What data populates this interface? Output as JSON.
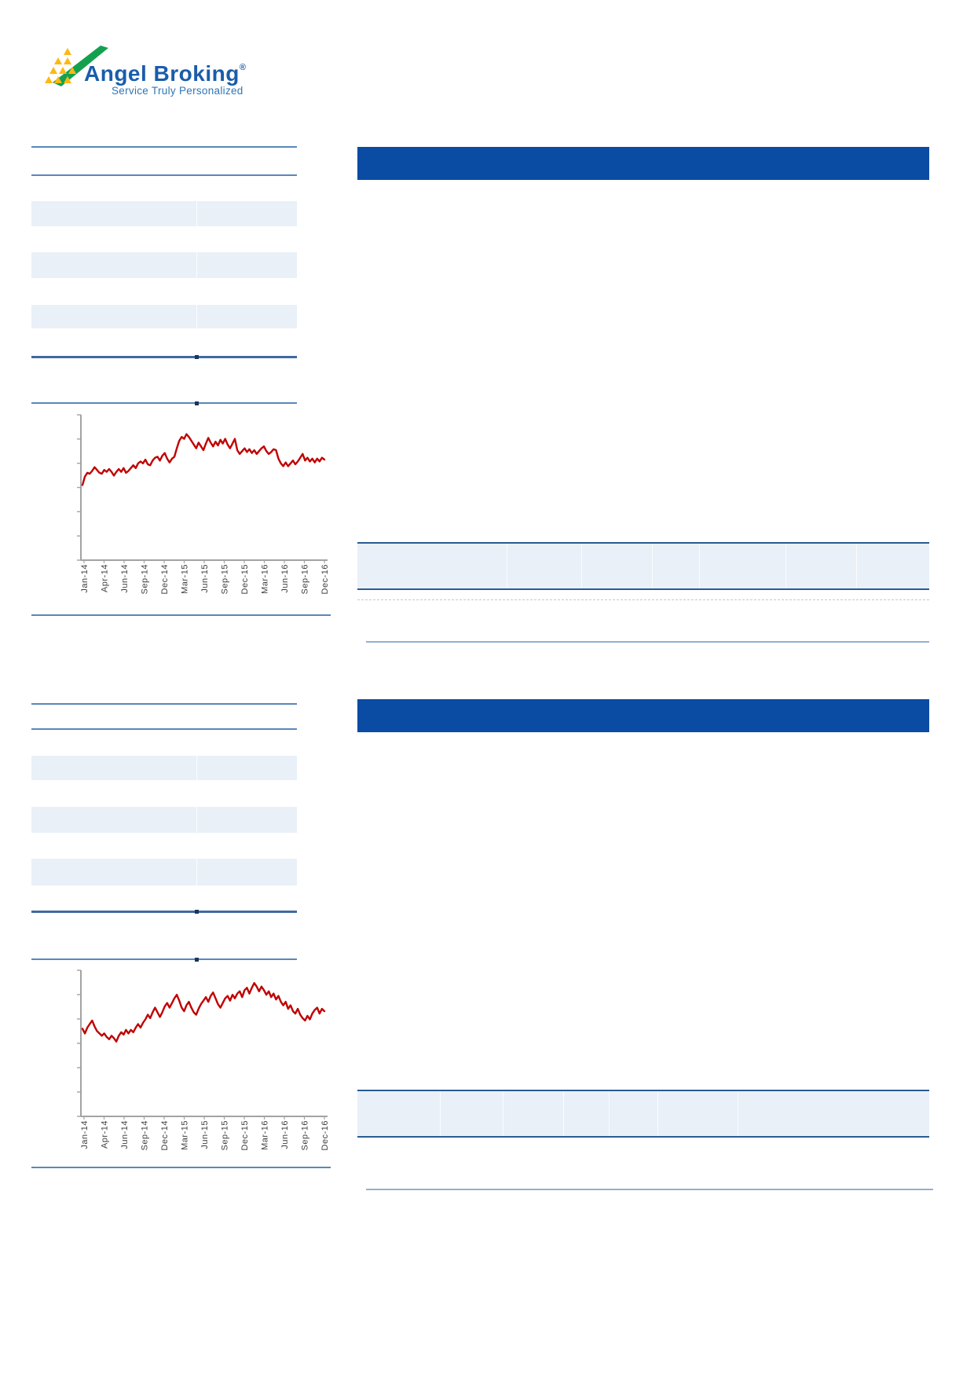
{
  "logo": {
    "brand": "Angel Broking",
    "registered": "®",
    "tagline": "Service Truly Personalized",
    "brand_color": "#1a5dab",
    "tagline_color": "#2f76b5",
    "triangle_green": "#13a14e",
    "triangle_yellow": "#fdb913"
  },
  "colors": {
    "header_bar_blue": "#0a4ba4",
    "divider_blue": "#5a87ba",
    "section_line_dark": "#3f6a9e",
    "table_band_fill": "#e9f0f8",
    "right_table_border": "#2a5c92",
    "hairline_blue": "#93afd2",
    "chart_line_red": "#c00000",
    "axis_gray": "#a3a3a3",
    "axis_label_gray": "#404040"
  },
  "chart_data": [
    {
      "type": "line",
      "title": "",
      "x_labels": [
        "Jan-14",
        "Apr-14",
        "Jun-14",
        "Sep-14",
        "Dec-14",
        "Mar-15",
        "Jun-15",
        "Sep-15",
        "Dec-15",
        "Mar-16",
        "Jun-16",
        "Sep-16",
        "Dec-16"
      ],
      "y_axis_tick_count": 7,
      "y_axis_labels_visible": false,
      "legend": "none",
      "line_color": "#c00000",
      "points": [
        [
          0,
          28
        ],
        [
          1,
          37
        ],
        [
          2,
          41
        ],
        [
          3,
          40
        ],
        [
          4,
          43
        ],
        [
          5,
          47
        ],
        [
          6,
          44
        ],
        [
          7,
          41
        ],
        [
          8,
          40
        ],
        [
          9,
          44
        ],
        [
          10,
          42
        ],
        [
          11,
          45
        ],
        [
          12,
          42
        ],
        [
          13,
          38
        ],
        [
          14,
          42
        ],
        [
          15,
          45
        ],
        [
          16,
          42
        ],
        [
          17,
          46
        ],
        [
          18,
          41
        ],
        [
          19,
          43
        ],
        [
          20,
          46
        ],
        [
          21,
          49
        ],
        [
          22,
          46
        ],
        [
          23,
          51
        ],
        [
          24,
          53
        ],
        [
          25,
          51
        ],
        [
          26,
          55
        ],
        [
          27,
          50
        ],
        [
          28,
          49
        ],
        [
          29,
          54
        ],
        [
          30,
          57
        ],
        [
          31,
          58
        ],
        [
          32,
          54
        ],
        [
          33,
          59
        ],
        [
          34,
          62
        ],
        [
          35,
          56
        ],
        [
          36,
          52
        ],
        [
          37,
          56
        ],
        [
          38,
          58
        ],
        [
          39,
          67
        ],
        [
          40,
          75
        ],
        [
          41,
          79
        ],
        [
          42,
          77
        ],
        [
          43,
          82
        ],
        [
          44,
          79
        ],
        [
          45,
          75
        ],
        [
          46,
          71
        ],
        [
          47,
          67
        ],
        [
          48,
          73
        ],
        [
          49,
          69
        ],
        [
          50,
          65
        ],
        [
          51,
          72
        ],
        [
          52,
          78
        ],
        [
          53,
          73
        ],
        [
          54,
          69
        ],
        [
          55,
          74
        ],
        [
          56,
          70
        ],
        [
          57,
          76
        ],
        [
          58,
          72
        ],
        [
          59,
          77
        ],
        [
          60,
          71
        ],
        [
          61,
          67
        ],
        [
          62,
          72
        ],
        [
          63,
          77
        ],
        [
          64,
          65
        ],
        [
          65,
          61
        ],
        [
          66,
          64
        ],
        [
          67,
          67
        ],
        [
          68,
          63
        ],
        [
          69,
          66
        ],
        [
          70,
          62
        ],
        [
          71,
          65
        ],
        [
          72,
          61
        ],
        [
          73,
          64
        ],
        [
          74,
          67
        ],
        [
          75,
          69
        ],
        [
          76,
          64
        ],
        [
          77,
          61
        ],
        [
          78,
          63
        ],
        [
          79,
          66
        ],
        [
          80,
          65
        ],
        [
          81,
          56
        ],
        [
          82,
          51
        ],
        [
          83,
          48
        ],
        [
          84,
          52
        ],
        [
          85,
          48
        ],
        [
          86,
          51
        ],
        [
          87,
          54
        ],
        [
          88,
          50
        ],
        [
          89,
          53
        ],
        [
          90,
          57
        ],
        [
          91,
          61
        ],
        [
          92,
          54
        ],
        [
          93,
          57
        ],
        [
          94,
          53
        ],
        [
          95,
          56
        ],
        [
          96,
          52
        ],
        [
          97,
          56
        ],
        [
          98,
          53
        ],
        [
          99,
          57
        ],
        [
          100,
          55
        ]
      ]
    },
    {
      "type": "line",
      "title": "",
      "x_labels": [
        "Jan-14",
        "Apr-14",
        "Jun-14",
        "Sep-14",
        "Dec-14",
        "Mar-15",
        "Jun-15",
        "Sep-15",
        "Dec-15",
        "Mar-16",
        "Jun-16",
        "Sep-16",
        "Dec-16"
      ],
      "y_axis_tick_count": 7,
      "y_axis_labels_visible": false,
      "legend": "none",
      "line_color": "#c00000",
      "points": [
        [
          0,
          44
        ],
        [
          1,
          40
        ],
        [
          2,
          45
        ],
        [
          3,
          48
        ],
        [
          4,
          51
        ],
        [
          5,
          46
        ],
        [
          6,
          42
        ],
        [
          7,
          40
        ],
        [
          8,
          38
        ],
        [
          9,
          40
        ],
        [
          10,
          37
        ],
        [
          11,
          35
        ],
        [
          12,
          38
        ],
        [
          13,
          36
        ],
        [
          14,
          33
        ],
        [
          15,
          38
        ],
        [
          16,
          41
        ],
        [
          17,
          39
        ],
        [
          18,
          43
        ],
        [
          19,
          40
        ],
        [
          20,
          43
        ],
        [
          21,
          41
        ],
        [
          22,
          45
        ],
        [
          23,
          48
        ],
        [
          24,
          45
        ],
        [
          25,
          49
        ],
        [
          26,
          52
        ],
        [
          27,
          56
        ],
        [
          28,
          53
        ],
        [
          29,
          58
        ],
        [
          30,
          62
        ],
        [
          31,
          58
        ],
        [
          32,
          54
        ],
        [
          33,
          58
        ],
        [
          34,
          63
        ],
        [
          35,
          66
        ],
        [
          36,
          62
        ],
        [
          37,
          66
        ],
        [
          38,
          70
        ],
        [
          39,
          73
        ],
        [
          40,
          68
        ],
        [
          41,
          62
        ],
        [
          42,
          59
        ],
        [
          43,
          64
        ],
        [
          44,
          67
        ],
        [
          45,
          62
        ],
        [
          46,
          58
        ],
        [
          47,
          56
        ],
        [
          48,
          61
        ],
        [
          49,
          65
        ],
        [
          50,
          68
        ],
        [
          51,
          71
        ],
        [
          52,
          67
        ],
        [
          53,
          72
        ],
        [
          54,
          75
        ],
        [
          55,
          70
        ],
        [
          56,
          65
        ],
        [
          57,
          62
        ],
        [
          58,
          66
        ],
        [
          59,
          70
        ],
        [
          60,
          72
        ],
        [
          61,
          68
        ],
        [
          62,
          73
        ],
        [
          63,
          70
        ],
        [
          64,
          74
        ],
        [
          65,
          76
        ],
        [
          66,
          71
        ],
        [
          67,
          77
        ],
        [
          68,
          79
        ],
        [
          69,
          74
        ],
        [
          70,
          79
        ],
        [
          71,
          83
        ],
        [
          72,
          80
        ],
        [
          73,
          76
        ],
        [
          74,
          80
        ],
        [
          75,
          77
        ],
        [
          76,
          73
        ],
        [
          77,
          76
        ],
        [
          78,
          71
        ],
        [
          79,
          74
        ],
        [
          80,
          69
        ],
        [
          81,
          72
        ],
        [
          82,
          67
        ],
        [
          83,
          64
        ],
        [
          84,
          67
        ],
        [
          85,
          61
        ],
        [
          86,
          64
        ],
        [
          87,
          59
        ],
        [
          88,
          57
        ],
        [
          89,
          61
        ],
        [
          90,
          56
        ],
        [
          91,
          53
        ],
        [
          92,
          51
        ],
        [
          93,
          55
        ],
        [
          94,
          52
        ],
        [
          95,
          57
        ],
        [
          96,
          60
        ],
        [
          97,
          62
        ],
        [
          98,
          57
        ],
        [
          99,
          61
        ],
        [
          100,
          59
        ]
      ]
    }
  ]
}
